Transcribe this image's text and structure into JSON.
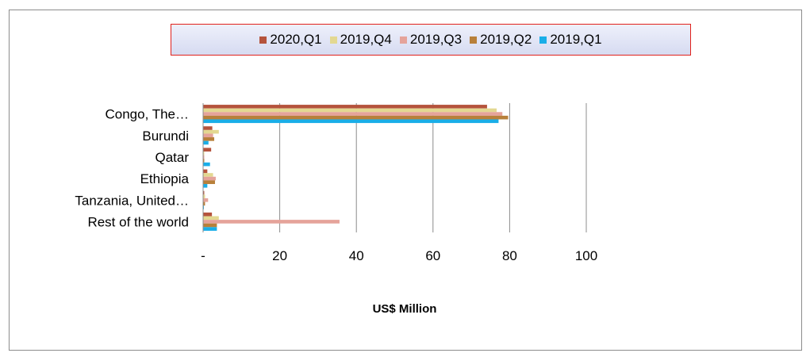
{
  "chart_data": {
    "type": "bar",
    "orientation": "horizontal",
    "title": "",
    "xlabel": "US$ Million",
    "ylabel": "",
    "xlim": [
      0,
      100
    ],
    "xticks": [
      0,
      20,
      40,
      60,
      80,
      100
    ],
    "xtick_labels": [
      "-",
      "20",
      "40",
      "60",
      "80",
      "100"
    ],
    "grid": "vertical",
    "legend_placement": "top",
    "categories": [
      "Congo, The…",
      "Burundi",
      "Qatar",
      "Ethiopia",
      "Tanzania, United…",
      "Rest of the world"
    ],
    "series": [
      {
        "name": "2020,Q1",
        "color": "#b5533c",
        "values": [
          74,
          2.3,
          2.0,
          1.0,
          0.2,
          2.2
        ]
      },
      {
        "name": "2019,Q4",
        "color": "#e3d891",
        "values": [
          76.5,
          4.0,
          0.2,
          2.5,
          0.4,
          4.0
        ]
      },
      {
        "name": "2019,Q3",
        "color": "#e5a39a",
        "values": [
          78,
          2.5,
          0.2,
          3.2,
          1.2,
          35.5
        ]
      },
      {
        "name": "2019,Q2",
        "color": "#b8803a",
        "values": [
          79.5,
          2.8,
          0.2,
          3.0,
          0.4,
          3.5
        ]
      },
      {
        "name": "2019,Q1",
        "color": "#1aaee8",
        "values": [
          77,
          1.3,
          1.7,
          1.0,
          0.1,
          3.5
        ]
      }
    ]
  }
}
